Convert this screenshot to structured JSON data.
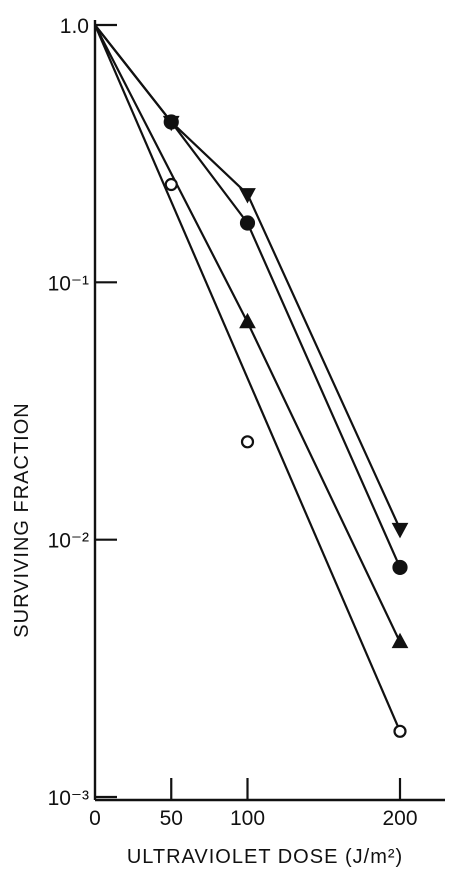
{
  "chart_data": {
    "type": "scatter",
    "title": "",
    "xlabel": "ULTRAVIOLET DOSE (J/m²)",
    "ylabel": "SURVIVING FRACTION",
    "x_scale": "linear",
    "y_scale": "log",
    "xlim": [
      0,
      200
    ],
    "ylim": [
      0.001,
      1
    ],
    "x_ticks": [
      0,
      50,
      100,
      200
    ],
    "x_tick_labels": [
      "0",
      "50",
      "100",
      "200"
    ],
    "y_ticks": [
      1,
      0.1,
      0.01,
      0.001
    ],
    "y_tick_labels": [
      "1.0",
      "10⁻¹",
      "10⁻²",
      "10⁻³"
    ],
    "grid": false,
    "legend": "none",
    "series": [
      {
        "marker": "triangle-down-filled",
        "points": [
          [
            0,
            1.0
          ],
          [
            50,
            0.42
          ],
          [
            100,
            0.22
          ],
          [
            200,
            0.011
          ]
        ],
        "fit": [
          [
            0,
            1.0
          ],
          [
            50,
            0.42
          ],
          [
            100,
            0.22
          ],
          [
            200,
            0.011
          ]
        ]
      },
      {
        "marker": "circle-filled",
        "points": [
          [
            0,
            1.0
          ],
          [
            50,
            0.42
          ],
          [
            100,
            0.17
          ],
          [
            200,
            0.0078
          ]
        ],
        "fit": [
          [
            0,
            1.0
          ],
          [
            50,
            0.42
          ],
          [
            100,
            0.17
          ],
          [
            200,
            0.0078
          ]
        ]
      },
      {
        "marker": "triangle-up-filled",
        "points": [
          [
            0,
            1.0
          ],
          [
            100,
            0.07
          ],
          [
            200,
            0.004
          ]
        ],
        "fit": [
          [
            0,
            1.0
          ],
          [
            100,
            0.07
          ],
          [
            200,
            0.004
          ]
        ]
      },
      {
        "marker": "circle-open",
        "points": [
          [
            0,
            1.0
          ],
          [
            50,
            0.24
          ],
          [
            100,
            0.024
          ],
          [
            200,
            0.0018
          ]
        ],
        "fit": [
          [
            0,
            1.0
          ],
          [
            200,
            0.0018
          ]
        ]
      }
    ]
  }
}
